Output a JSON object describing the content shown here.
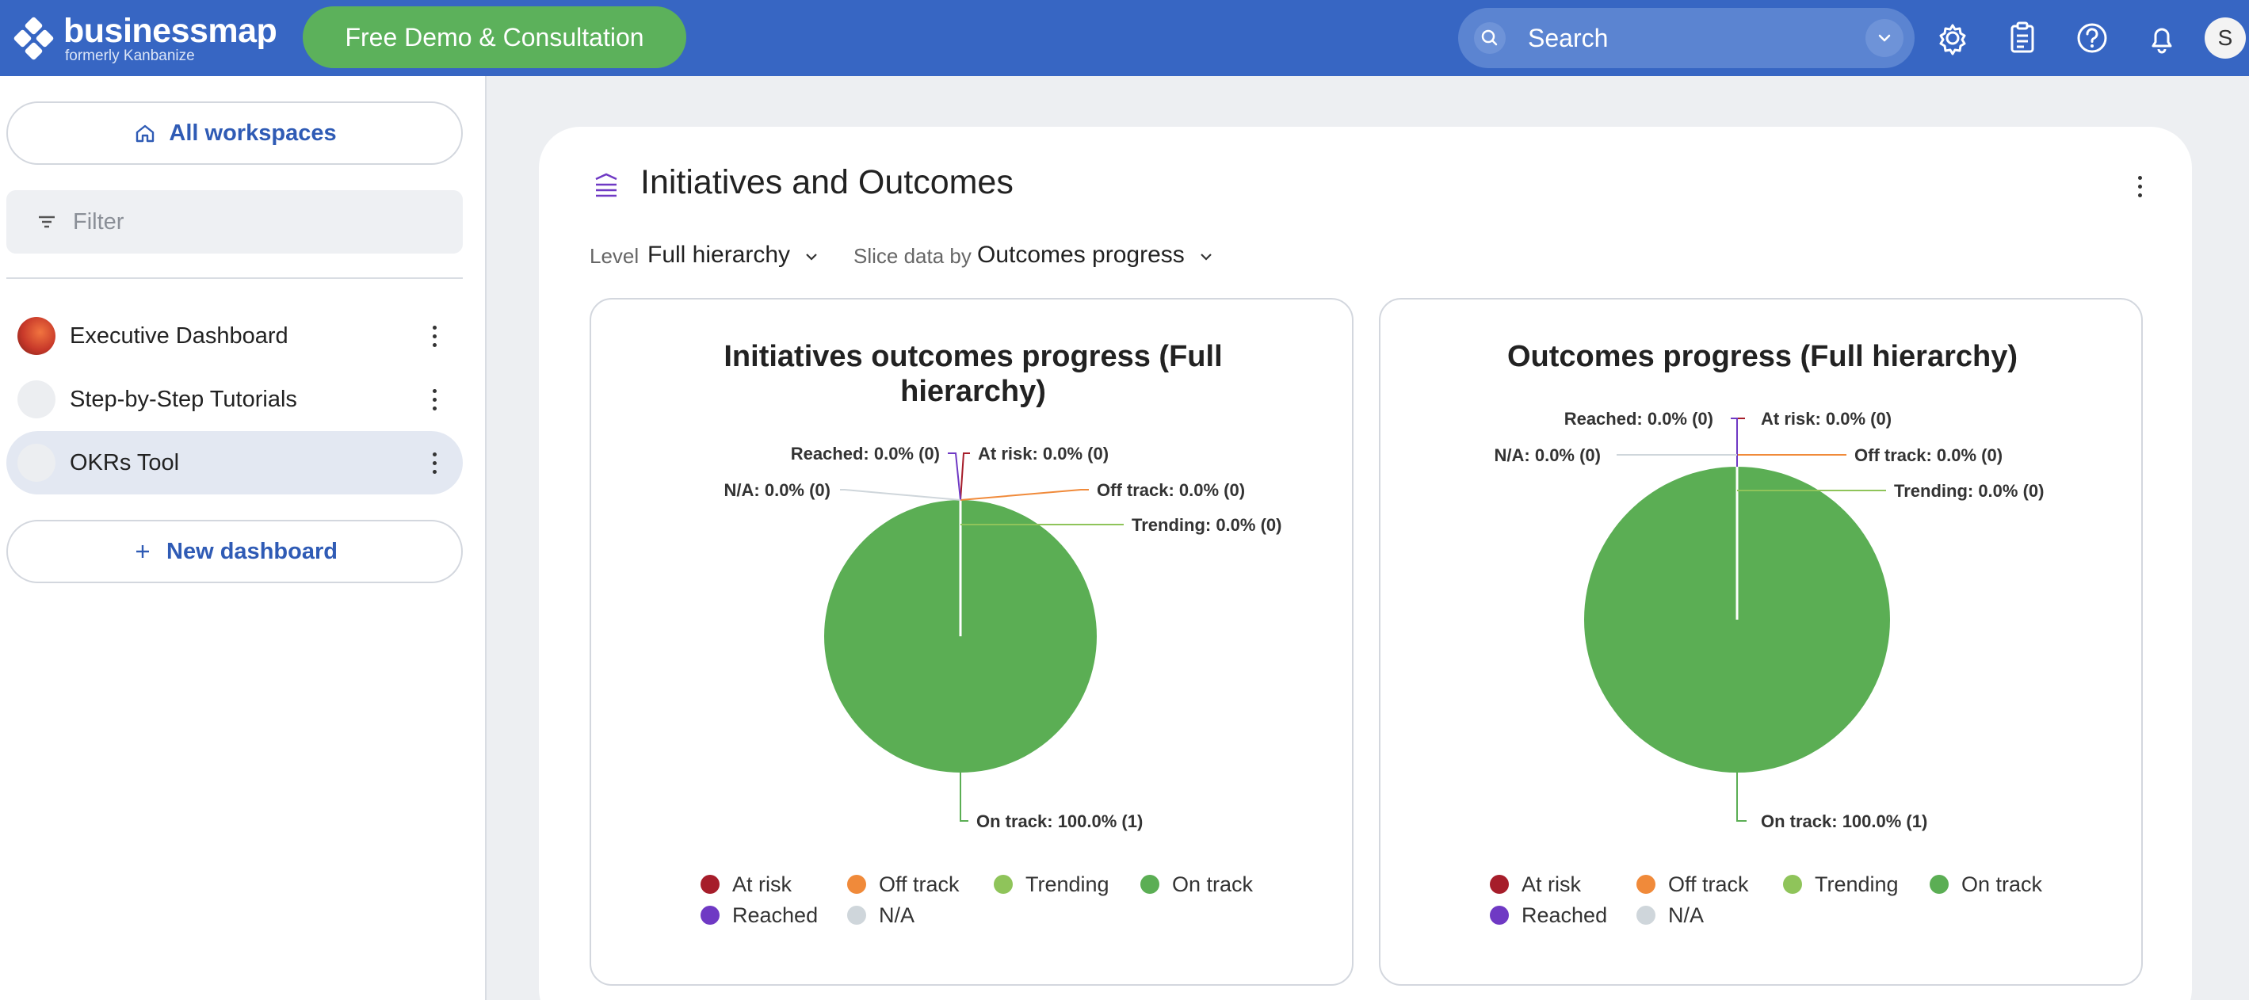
{
  "topbar": {
    "brand": "businessmap",
    "brand_sub": "formerly Kanbanize",
    "demo_button": "Free Demo & Consultation",
    "search_placeholder": "Search",
    "avatar_initial": "S"
  },
  "sidebar": {
    "all_workspaces": "All workspaces",
    "filter_placeholder": "Filter",
    "items": [
      {
        "label": "Executive Dashboard"
      },
      {
        "label": "Step-by-Step Tutorials"
      },
      {
        "label": "OKRs Tool"
      }
    ],
    "new_dashboard": "New dashboard"
  },
  "main": {
    "title": "Initiatives and Outcomes",
    "level_label": "Level",
    "level_value": "Full hierarchy",
    "slice_label": "Slice data by",
    "slice_value": "Outcomes progress"
  },
  "colors": {
    "at_risk": "#a61d2a",
    "off_track": "#f08a3a",
    "trending": "#8fc45a",
    "on_track": "#5bae54",
    "reached": "#6f39c4",
    "na": "#cfd6db"
  },
  "chart_data": [
    {
      "type": "pie",
      "title": "Initiatives outcomes progress (Full hierarchy)",
      "slices": [
        {
          "name": "At risk",
          "value": 0,
          "percent": 0.0,
          "label": "At risk: 0.0% (0)"
        },
        {
          "name": "Off track",
          "value": 0,
          "percent": 0.0,
          "label": "Off track: 0.0% (0)"
        },
        {
          "name": "Trending",
          "value": 0,
          "percent": 0.0,
          "label": "Trending: 0.0% (0)"
        },
        {
          "name": "On track",
          "value": 1,
          "percent": 100.0,
          "label": "On track: 100.0% (1)"
        },
        {
          "name": "Reached",
          "value": 0,
          "percent": 0.0,
          "label": "Reached: 0.0% (0)"
        },
        {
          "name": "N/A",
          "value": 0,
          "percent": 0.0,
          "label": "N/A: 0.0% (0)"
        }
      ],
      "legend": [
        "At risk",
        "Off track",
        "Trending",
        "On track",
        "Reached",
        "N/A"
      ],
      "legend_position": "bottom"
    },
    {
      "type": "pie",
      "title": "Outcomes progress (Full hierarchy)",
      "slices": [
        {
          "name": "At risk",
          "value": 0,
          "percent": 0.0,
          "label": "At risk: 0.0% (0)"
        },
        {
          "name": "Off track",
          "value": 0,
          "percent": 0.0,
          "label": "Off track: 0.0% (0)"
        },
        {
          "name": "Trending",
          "value": 0,
          "percent": 0.0,
          "label": "Trending: 0.0% (0)"
        },
        {
          "name": "On track",
          "value": 1,
          "percent": 100.0,
          "label": "On track: 100.0% (1)"
        },
        {
          "name": "Reached",
          "value": 0,
          "percent": 0.0,
          "label": "Reached: 0.0% (0)"
        },
        {
          "name": "N/A",
          "value": 0,
          "percent": 0.0,
          "label": "N/A: 0.0% (0)"
        }
      ],
      "legend": [
        "At risk",
        "Off track",
        "Trending",
        "On track",
        "Reached",
        "N/A"
      ],
      "legend_position": "bottom"
    }
  ]
}
